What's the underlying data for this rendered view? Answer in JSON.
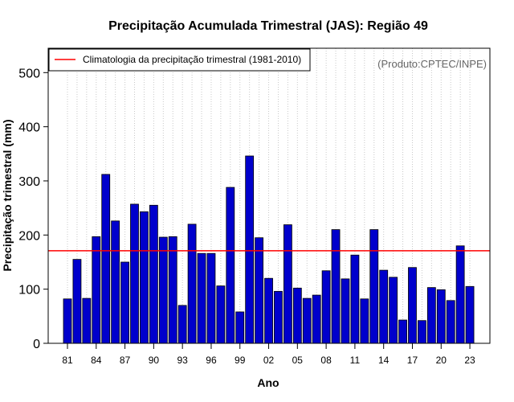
{
  "chart_data": {
    "type": "bar",
    "title": "Precipitação Acumulada Trimestral (JAS): Região 49",
    "xlabel": "Ano",
    "ylabel": "Precipitação trimestral (mm)",
    "credit": "(Produto:CPTEC/INPE)",
    "ylim": [
      0,
      545
    ],
    "yticks": [
      0,
      100,
      200,
      300,
      400,
      500
    ],
    "years": [
      1981,
      1982,
      1983,
      1984,
      1985,
      1986,
      1987,
      1988,
      1989,
      1990,
      1991,
      1992,
      1993,
      1994,
      1995,
      1996,
      1997,
      1998,
      1999,
      2000,
      2001,
      2002,
      2003,
      2004,
      2005,
      2006,
      2007,
      2008,
      2009,
      2010,
      2011,
      2012,
      2013,
      2014,
      2015,
      2016,
      2017,
      2018,
      2019,
      2020,
      2021,
      2022,
      2023
    ],
    "values": [
      82,
      155,
      83,
      197,
      312,
      226,
      150,
      257,
      243,
      255,
      196,
      197,
      70,
      220,
      166,
      166,
      106,
      288,
      58,
      346,
      195,
      120,
      96,
      219,
      102,
      83,
      89,
      134,
      210,
      119,
      163,
      82,
      210,
      135,
      122,
      43,
      140,
      42,
      103,
      99,
      79,
      180,
      105
    ],
    "xtick_labels": [
      "81",
      "84",
      "87",
      "90",
      "93",
      "96",
      "99",
      "02",
      "05",
      "08",
      "11",
      "14",
      "17",
      "20",
      "23"
    ],
    "bar_color": "#0000cc",
    "climatology": {
      "label": "Climatologia da precipitação trimestral (1981-2010)",
      "value": 171,
      "color": "#ff0000"
    },
    "legend_position": "top-left",
    "grid": "vertical-dotted"
  }
}
